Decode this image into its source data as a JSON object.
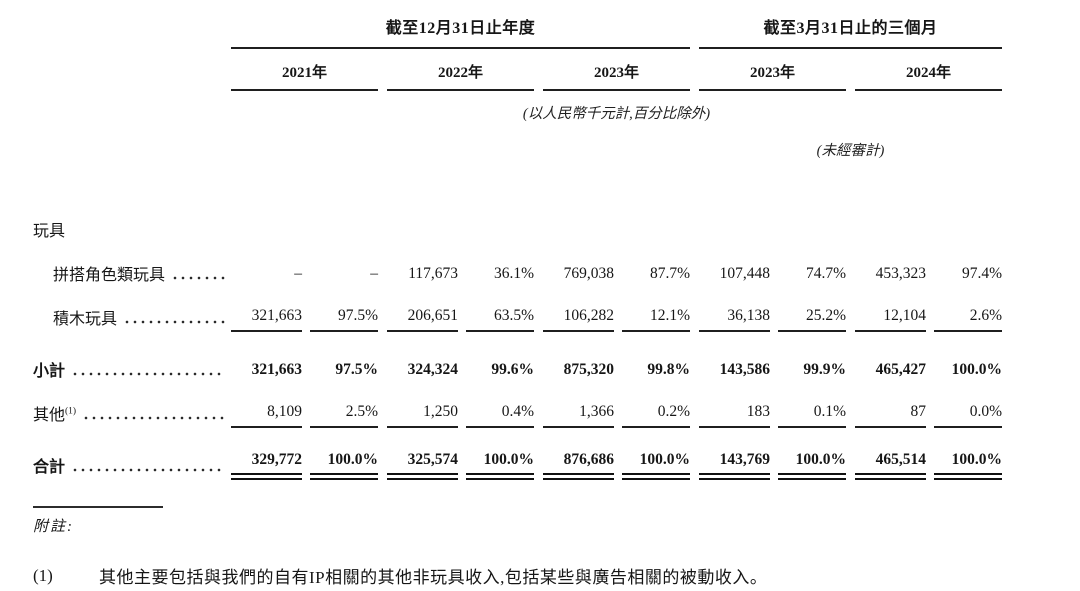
{
  "header": {
    "group1_title": "截至12月31日止年度",
    "group2_title": "截至3月31日止的三個月",
    "years": [
      "2021年",
      "2022年",
      "2023年",
      "2023年",
      "2024年"
    ],
    "unit_note": "(以人民幣千元計,百分比除外)",
    "unaudited_note": "(未經審計)"
  },
  "table": {
    "section_label": "玩具",
    "rows": [
      {
        "label": "拼搭角色類玩具",
        "values": [
          "–",
          "–",
          "117,673",
          "36.1%",
          "769,038",
          "87.7%",
          "107,448",
          "74.7%",
          "453,323",
          "97.4%"
        ]
      },
      {
        "label": "積木玩具",
        "values": [
          "321,663",
          "97.5%",
          "206,651",
          "63.5%",
          "106,282",
          "12.1%",
          "36,138",
          "25.2%",
          "12,104",
          "2.6%"
        ]
      },
      {
        "label": "小計",
        "values": [
          "321,663",
          "97.5%",
          "324,324",
          "99.6%",
          "875,320",
          "99.8%",
          "143,586",
          "99.9%",
          "465,427",
          "100.0%"
        ]
      },
      {
        "label": "其他",
        "sup": "(1)",
        "values": [
          "8,109",
          "2.5%",
          "1,250",
          "0.4%",
          "1,366",
          "0.2%",
          "183",
          "0.1%",
          "87",
          "0.0%"
        ]
      },
      {
        "label": "合計",
        "values": [
          "329,772",
          "100.0%",
          "325,574",
          "100.0%",
          "876,686",
          "100.0%",
          "143,769",
          "100.0%",
          "465,514",
          "100.0%"
        ]
      }
    ]
  },
  "footnotes": {
    "label": "附註:",
    "items": [
      {
        "num": "(1)",
        "text": "其他主要包括與我們的自有IP相關的其他非玩具收入,包括某些與廣告相關的被動收入。"
      }
    ]
  }
}
